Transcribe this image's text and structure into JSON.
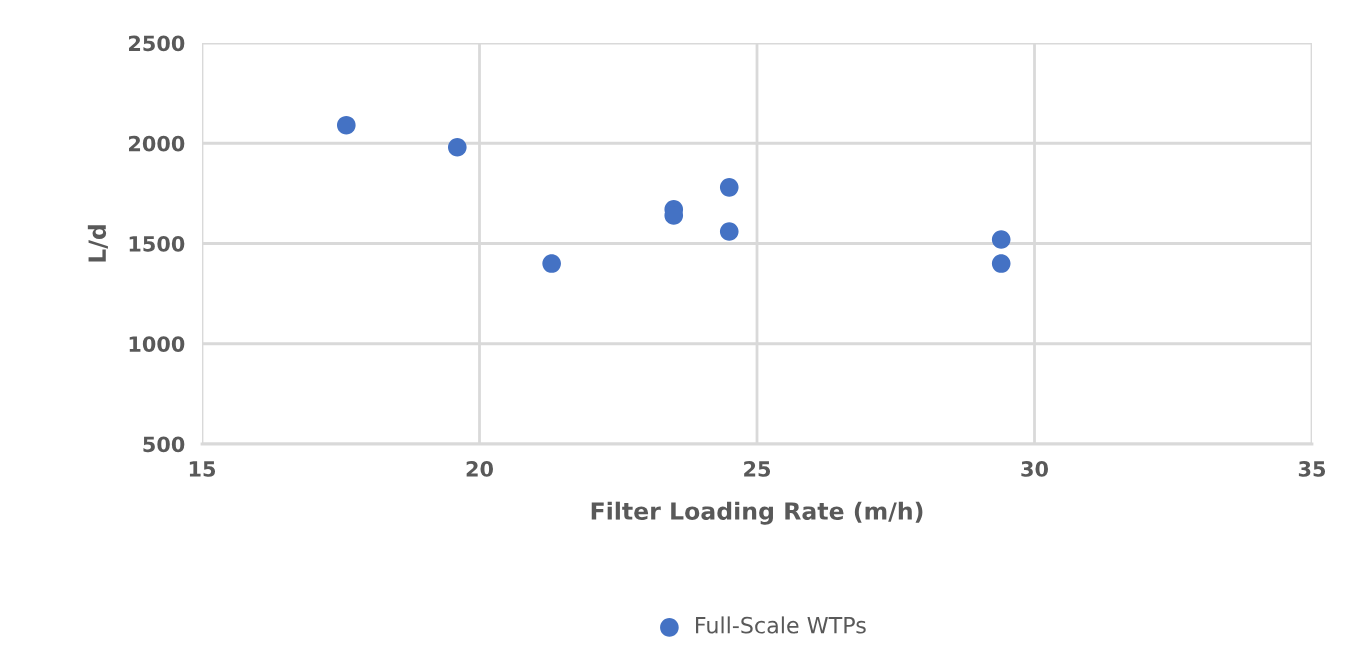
{
  "chart_data": {
    "type": "scatter",
    "xlabel": "Filter Loading Rate (m/h)",
    "ylabel": "L/d",
    "series": [
      {
        "name": "Full-Scale WTPs",
        "color": "#4472c4",
        "x": [
          17.6,
          19.6,
          21.3,
          23.5,
          23.5,
          24.5,
          24.5,
          29.4,
          29.4
        ],
        "values": [
          2090,
          1980,
          1400,
          1670,
          1640,
          1780,
          1560,
          1520,
          1400
        ]
      }
    ],
    "xlim": [
      15,
      35
    ],
    "xticks": [
      15,
      20,
      25,
      30,
      35
    ],
    "ylim": [
      500,
      2500
    ],
    "yticks": [
      500,
      1000,
      1500,
      2000,
      2500
    ],
    "grid": true,
    "legend": "bottom",
    "marker": "circle"
  }
}
